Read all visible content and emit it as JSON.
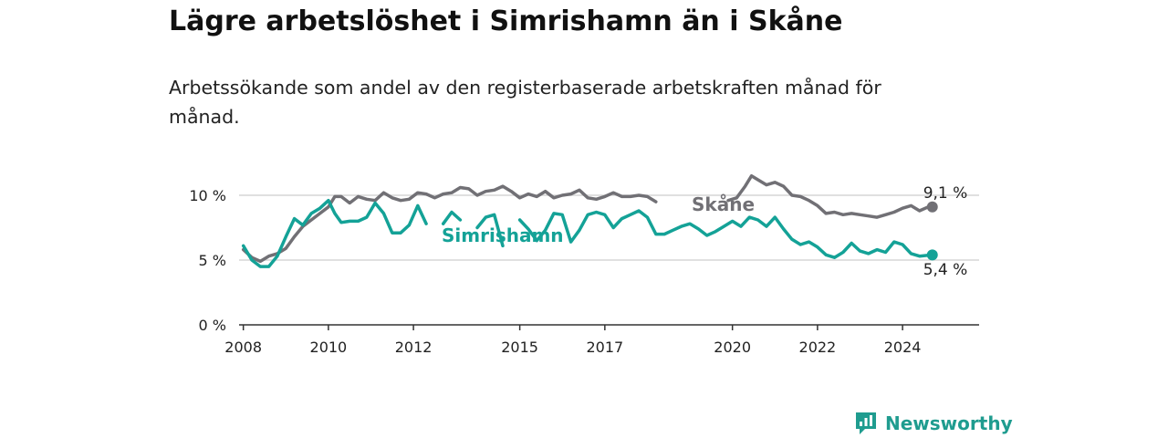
{
  "title": "Lägre arbetslöshet i Simrishamn än i Skåne",
  "subtitle": "Arbetssökande som andel av den registerbaserade arbetskraften månad för månad.",
  "brand": {
    "name": "Newsworthy",
    "icon": "newsworthy-chart-bubble-icon"
  },
  "colors": {
    "skane": "#717075",
    "simrishamn": "#14a297",
    "grid": "#d6d6d6",
    "axis": "#333333",
    "brand": "#1f9c8f"
  },
  "chart_data": {
    "type": "line",
    "title": "Lägre arbetslöshet i Simrishamn än i Skåne",
    "xlabel": "",
    "ylabel": "",
    "x_ticks": [
      "2008",
      "2010",
      "2012",
      "2015",
      "2017",
      "2020",
      "2022",
      "2024"
    ],
    "x_tick_values": [
      2008.0,
      2010.0,
      2012.0,
      2014.5,
      2016.5,
      2019.5,
      2021.5,
      2023.5
    ],
    "y_ticks": [
      0,
      5,
      10
    ],
    "y_tick_labels": [
      "0 %",
      "5 %",
      "10 %"
    ],
    "ylim": [
      0,
      12
    ],
    "xlim": [
      2007.9,
      2025.3
    ],
    "grid": true,
    "series": [
      {
        "name": "Skåne",
        "label": "Skåne",
        "end_label": "9,1 %",
        "points": [
          [
            2008.0,
            5.8
          ],
          [
            2008.2,
            5.2
          ],
          [
            2008.4,
            4.9
          ],
          [
            2008.6,
            5.3
          ],
          [
            2008.8,
            5.5
          ],
          [
            2009.0,
            5.9
          ],
          [
            2009.2,
            6.8
          ],
          [
            2009.4,
            7.6
          ],
          [
            2009.6,
            8.1
          ],
          [
            2009.8,
            8.6
          ],
          [
            2010.0,
            9.1
          ],
          [
            2010.15,
            9.9
          ],
          [
            2010.3,
            9.9
          ],
          [
            2010.5,
            9.4
          ],
          [
            2010.7,
            9.9
          ],
          [
            2010.9,
            9.7
          ],
          [
            2011.1,
            9.6
          ],
          [
            2011.3,
            10.2
          ],
          [
            2011.5,
            9.8
          ],
          [
            2011.7,
            9.6
          ],
          [
            2011.9,
            9.7
          ],
          [
            2012.1,
            10.2
          ],
          [
            2012.3,
            10.1
          ],
          [
            2012.5,
            9.8
          ],
          [
            2012.7,
            10.1
          ],
          [
            2012.9,
            10.2
          ],
          [
            2013.1,
            10.6
          ],
          [
            2013.3,
            10.5
          ],
          [
            2013.5,
            10.0
          ],
          [
            2013.7,
            10.3
          ],
          [
            2013.9,
            10.4
          ],
          [
            2014.1,
            10.7
          ],
          [
            2014.3,
            10.3
          ],
          [
            2014.5,
            9.8
          ],
          [
            2014.7,
            10.1
          ],
          [
            2014.9,
            9.9
          ],
          [
            2015.1,
            10.3
          ],
          [
            2015.3,
            9.8
          ],
          [
            2015.5,
            10.0
          ],
          [
            2015.7,
            10.1
          ],
          [
            2015.9,
            10.4
          ],
          [
            2016.1,
            9.8
          ],
          [
            2016.3,
            9.7
          ],
          [
            2016.5,
            9.9
          ],
          [
            2016.7,
            10.2
          ],
          [
            2016.9,
            9.9
          ],
          [
            2017.1,
            9.9
          ],
          [
            2017.3,
            10.0
          ],
          [
            2017.5,
            9.9
          ],
          [
            2017.7,
            9.5
          ],
          [
            2019.4,
            9.6
          ],
          [
            2019.6,
            9.8
          ],
          [
            2019.8,
            10.7
          ],
          [
            2019.95,
            11.5
          ],
          [
            2020.1,
            11.2
          ],
          [
            2020.3,
            10.8
          ],
          [
            2020.5,
            11.0
          ],
          [
            2020.7,
            10.7
          ],
          [
            2020.9,
            10.0
          ],
          [
            2021.1,
            9.9
          ],
          [
            2021.3,
            9.6
          ],
          [
            2021.5,
            9.2
          ],
          [
            2021.7,
            8.6
          ],
          [
            2021.9,
            8.7
          ],
          [
            2022.1,
            8.5
          ],
          [
            2022.3,
            8.6
          ],
          [
            2022.5,
            8.5
          ],
          [
            2022.7,
            8.4
          ],
          [
            2022.9,
            8.3
          ],
          [
            2023.1,
            8.5
          ],
          [
            2023.3,
            8.7
          ],
          [
            2023.5,
            9.0
          ],
          [
            2023.7,
            9.2
          ],
          [
            2023.9,
            8.8
          ],
          [
            2024.1,
            9.1
          ],
          [
            2024.2,
            9.1
          ]
        ]
      },
      {
        "name": "Simrishamn",
        "label": "Simrishamn",
        "end_label": "5,4 %",
        "points": [
          [
            2008.0,
            6.1
          ],
          [
            2008.2,
            5.0
          ],
          [
            2008.4,
            4.5
          ],
          [
            2008.6,
            4.5
          ],
          [
            2008.8,
            5.3
          ],
          [
            2009.0,
            6.8
          ],
          [
            2009.2,
            8.2
          ],
          [
            2009.4,
            7.7
          ],
          [
            2009.6,
            8.6
          ],
          [
            2009.8,
            9.0
          ],
          [
            2010.0,
            9.6
          ],
          [
            2010.15,
            8.6
          ],
          [
            2010.3,
            7.9
          ],
          [
            2010.5,
            8.0
          ],
          [
            2010.7,
            8.0
          ],
          [
            2010.9,
            8.3
          ],
          [
            2011.1,
            9.4
          ],
          [
            2011.3,
            8.6
          ],
          [
            2011.5,
            7.1
          ],
          [
            2011.7,
            7.1
          ],
          [
            2011.9,
            7.7
          ],
          [
            2012.1,
            9.2
          ],
          [
            2012.3,
            7.8
          ],
          [
            2012.7,
            7.8
          ],
          [
            2012.9,
            8.7
          ],
          [
            2013.1,
            8.1
          ],
          [
            2013.5,
            7.5
          ],
          [
            2013.7,
            8.3
          ],
          [
            2013.9,
            8.5
          ],
          [
            2014.1,
            6.1
          ],
          [
            2014.5,
            8.1
          ],
          [
            2014.7,
            7.4
          ],
          [
            2014.9,
            6.5
          ],
          [
            2015.1,
            7.3
          ],
          [
            2015.3,
            8.6
          ],
          [
            2015.5,
            8.5
          ],
          [
            2015.7,
            6.4
          ],
          [
            2015.9,
            7.3
          ],
          [
            2016.1,
            8.5
          ],
          [
            2016.3,
            8.7
          ],
          [
            2016.5,
            8.5
          ],
          [
            2016.7,
            7.5
          ],
          [
            2016.9,
            8.2
          ],
          [
            2017.1,
            8.5
          ],
          [
            2017.3,
            8.8
          ],
          [
            2017.5,
            8.3
          ],
          [
            2017.7,
            7.0
          ],
          [
            2017.9,
            7.0
          ],
          [
            2018.1,
            7.3
          ],
          [
            2018.3,
            7.6
          ],
          [
            2018.5,
            7.8
          ],
          [
            2018.7,
            7.4
          ],
          [
            2018.9,
            6.9
          ],
          [
            2019.1,
            7.2
          ],
          [
            2019.3,
            7.6
          ],
          [
            2019.5,
            8.0
          ],
          [
            2019.7,
            7.6
          ],
          [
            2019.9,
            8.3
          ],
          [
            2020.1,
            8.1
          ],
          [
            2020.3,
            7.6
          ],
          [
            2020.5,
            8.3
          ],
          [
            2020.7,
            7.4
          ],
          [
            2020.9,
            6.6
          ],
          [
            2021.1,
            6.2
          ],
          [
            2021.3,
            6.4
          ],
          [
            2021.5,
            6.0
          ],
          [
            2021.7,
            5.4
          ],
          [
            2021.9,
            5.2
          ],
          [
            2022.1,
            5.6
          ],
          [
            2022.3,
            6.3
          ],
          [
            2022.5,
            5.7
          ],
          [
            2022.7,
            5.5
          ],
          [
            2022.9,
            5.8
          ],
          [
            2023.1,
            5.6
          ],
          [
            2023.3,
            6.4
          ],
          [
            2023.5,
            6.2
          ],
          [
            2023.7,
            5.5
          ],
          [
            2023.9,
            5.3
          ],
          [
            2024.2,
            5.4
          ]
        ]
      }
    ]
  }
}
